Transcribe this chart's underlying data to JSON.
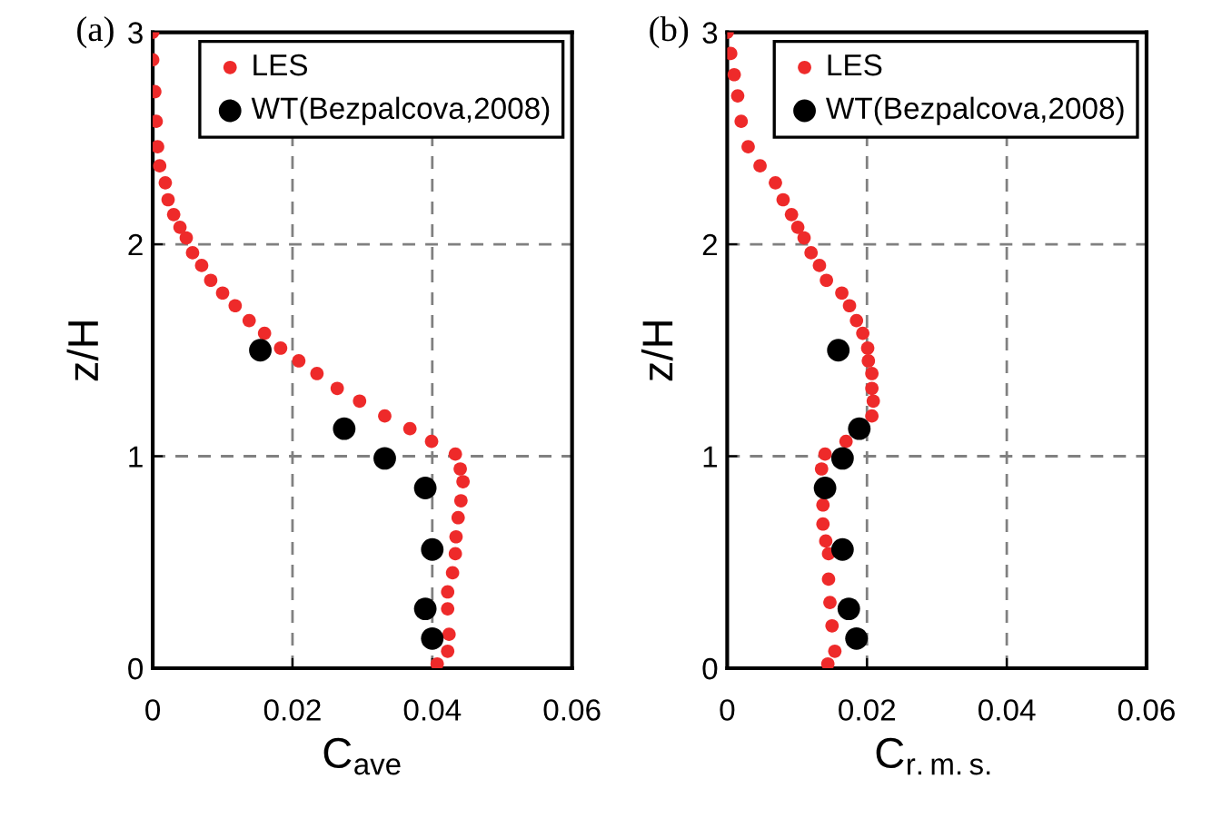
{
  "chart_data": [
    {
      "type": "scatter",
      "xlabel": "C$_{ave}$",
      "ylabel": "z/H",
      "annotations": [
        "(a)"
      ],
      "xlim": [
        0,
        0.06
      ],
      "ylim": [
        0,
        3
      ],
      "xticks": [
        0,
        0.02,
        0.04,
        0.06
      ],
      "yticks": [
        0,
        1,
        2,
        3
      ],
      "grid": true,
      "legend": "top right",
      "marker": "circle",
      "series": [
        {
          "name": "LES",
          "color": "#ee2a2a",
          "x": [
            0,
            0,
            0.0003,
            0.0005,
            0.0007,
            0.001,
            0.0018,
            0.0022,
            0.003,
            0.0039,
            0.0048,
            0.0057,
            0.007,
            0.0083,
            0.01,
            0.0118,
            0.0138,
            0.016,
            0.0183,
            0.0209,
            0.0235,
            0.0264,
            0.0296,
            0.0332,
            0.0368,
            0.0399,
            0.0433,
            0.044,
            0.0444,
            0.0441,
            0.0437,
            0.0434,
            0.0433,
            0.0429,
            0.0422,
            0.0422,
            0.0424,
            0.0422,
            0.0407
          ],
          "values": [
            3.0,
            2.87,
            2.72,
            2.58,
            2.46,
            2.37,
            2.29,
            2.21,
            2.14,
            2.08,
            2.03,
            1.96,
            1.9,
            1.83,
            1.77,
            1.71,
            1.64,
            1.58,
            1.51,
            1.45,
            1.39,
            1.32,
            1.26,
            1.19,
            1.13,
            1.07,
            1.01,
            0.94,
            0.88,
            0.79,
            0.71,
            0.62,
            0.54,
            0.45,
            0.36,
            0.28,
            0.16,
            0.08,
            0.02
          ]
        },
        {
          "name": "WT(Bezpalcova,2008)",
          "color": "#000000",
          "x": [
            0.0154,
            0.0274,
            0.0332,
            0.039,
            0.04,
            0.039,
            0.04
          ],
          "values": [
            1.5,
            1.13,
            0.99,
            0.85,
            0.56,
            0.28,
            0.14
          ]
        }
      ]
    },
    {
      "type": "scatter",
      "xlabel": "C$_{r.m.s.}$",
      "ylabel": "z/H",
      "annotations": [
        "(b)"
      ],
      "xlim": [
        0,
        0.06
      ],
      "ylim": [
        0,
        3
      ],
      "xticks": [
        0,
        0.02,
        0.04,
        0.06
      ],
      "yticks": [
        0,
        1,
        2,
        3
      ],
      "grid": true,
      "legend": "top right",
      "marker": "circle",
      "series": [
        {
          "name": "LES",
          "color": "#ee2a2a",
          "x": [
            0,
            0.0005,
            0.001,
            0.0015,
            0.002,
            0.003,
            0.0047,
            0.0069,
            0.008,
            0.0092,
            0.0101,
            0.011,
            0.012,
            0.0132,
            0.0142,
            0.0164,
            0.0175,
            0.0185,
            0.0194,
            0.0201,
            0.0202,
            0.0207,
            0.0207,
            0.0209,
            0.0207,
            0.017,
            0.014,
            0.0135,
            0.0137,
            0.0137,
            0.0141,
            0.0145,
            0.0145,
            0.0147,
            0.015,
            0.0154,
            0.0144
          ],
          "values": [
            3.0,
            2.9,
            2.8,
            2.7,
            2.58,
            2.46,
            2.37,
            2.29,
            2.21,
            2.14,
            2.08,
            2.03,
            1.96,
            1.9,
            1.83,
            1.77,
            1.71,
            1.64,
            1.58,
            1.51,
            1.45,
            1.39,
            1.32,
            1.26,
            1.19,
            1.07,
            1.01,
            0.94,
            0.77,
            0.68,
            0.6,
            0.54,
            0.42,
            0.31,
            0.2,
            0.08,
            0.02
          ]
        },
        {
          "name": "WT(Bezpalcova,2008)",
          "color": "#000000",
          "x": [
            0.0159,
            0.0189,
            0.0165,
            0.014,
            0.0165,
            0.0174,
            0.0185
          ],
          "values": [
            1.5,
            1.13,
            0.99,
            0.85,
            0.56,
            0.28,
            0.14
          ]
        }
      ]
    }
  ]
}
